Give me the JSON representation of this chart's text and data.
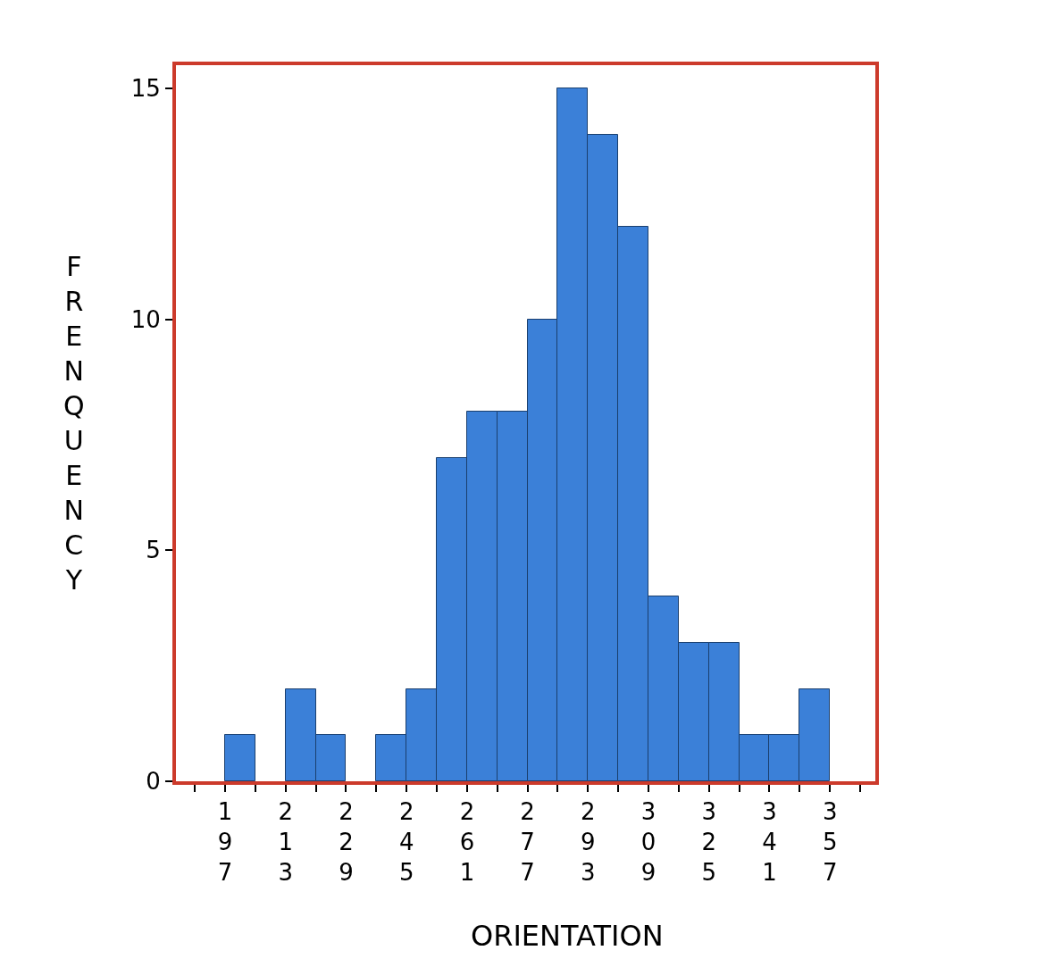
{
  "chart_data": {
    "type": "histogram",
    "xlabel": "ORIENTATION",
    "ylabel": "FRENQUENCY",
    "bins": [
      197,
      205,
      213,
      221,
      229,
      237,
      245,
      253,
      261,
      269,
      277,
      285,
      293,
      301,
      309,
      317,
      325,
      333,
      341,
      349,
      357
    ],
    "values": [
      1,
      0,
      2,
      1,
      0,
      1,
      2,
      7,
      8,
      8,
      10,
      15,
      14,
      12,
      4,
      3,
      3,
      1,
      1,
      2
    ],
    "color": "#3b80d8",
    "xlim": [
      184,
      369
    ],
    "xticks": [
      {
        "value": 189,
        "label": null
      },
      197,
      {
        "value": 205,
        "label": null
      },
      213,
      {
        "value": 221,
        "label": null
      },
      229,
      {
        "value": 237,
        "label": null
      },
      245,
      {
        "value": 253,
        "label": null
      },
      261,
      {
        "value": 269,
        "label": null
      },
      277,
      {
        "value": 285,
        "label": null
      },
      293,
      {
        "value": 301,
        "label": null
      },
      309,
      {
        "value": 317,
        "label": null
      },
      325,
      {
        "value": 333,
        "label": null
      },
      341,
      {
        "value": 349,
        "label": null
      },
      357,
      {
        "value": 365,
        "label": null
      }
    ],
    "ylim": [
      0,
      15.5
    ],
    "yticks": [
      0,
      5,
      10,
      15
    ],
    "grid": false
  }
}
